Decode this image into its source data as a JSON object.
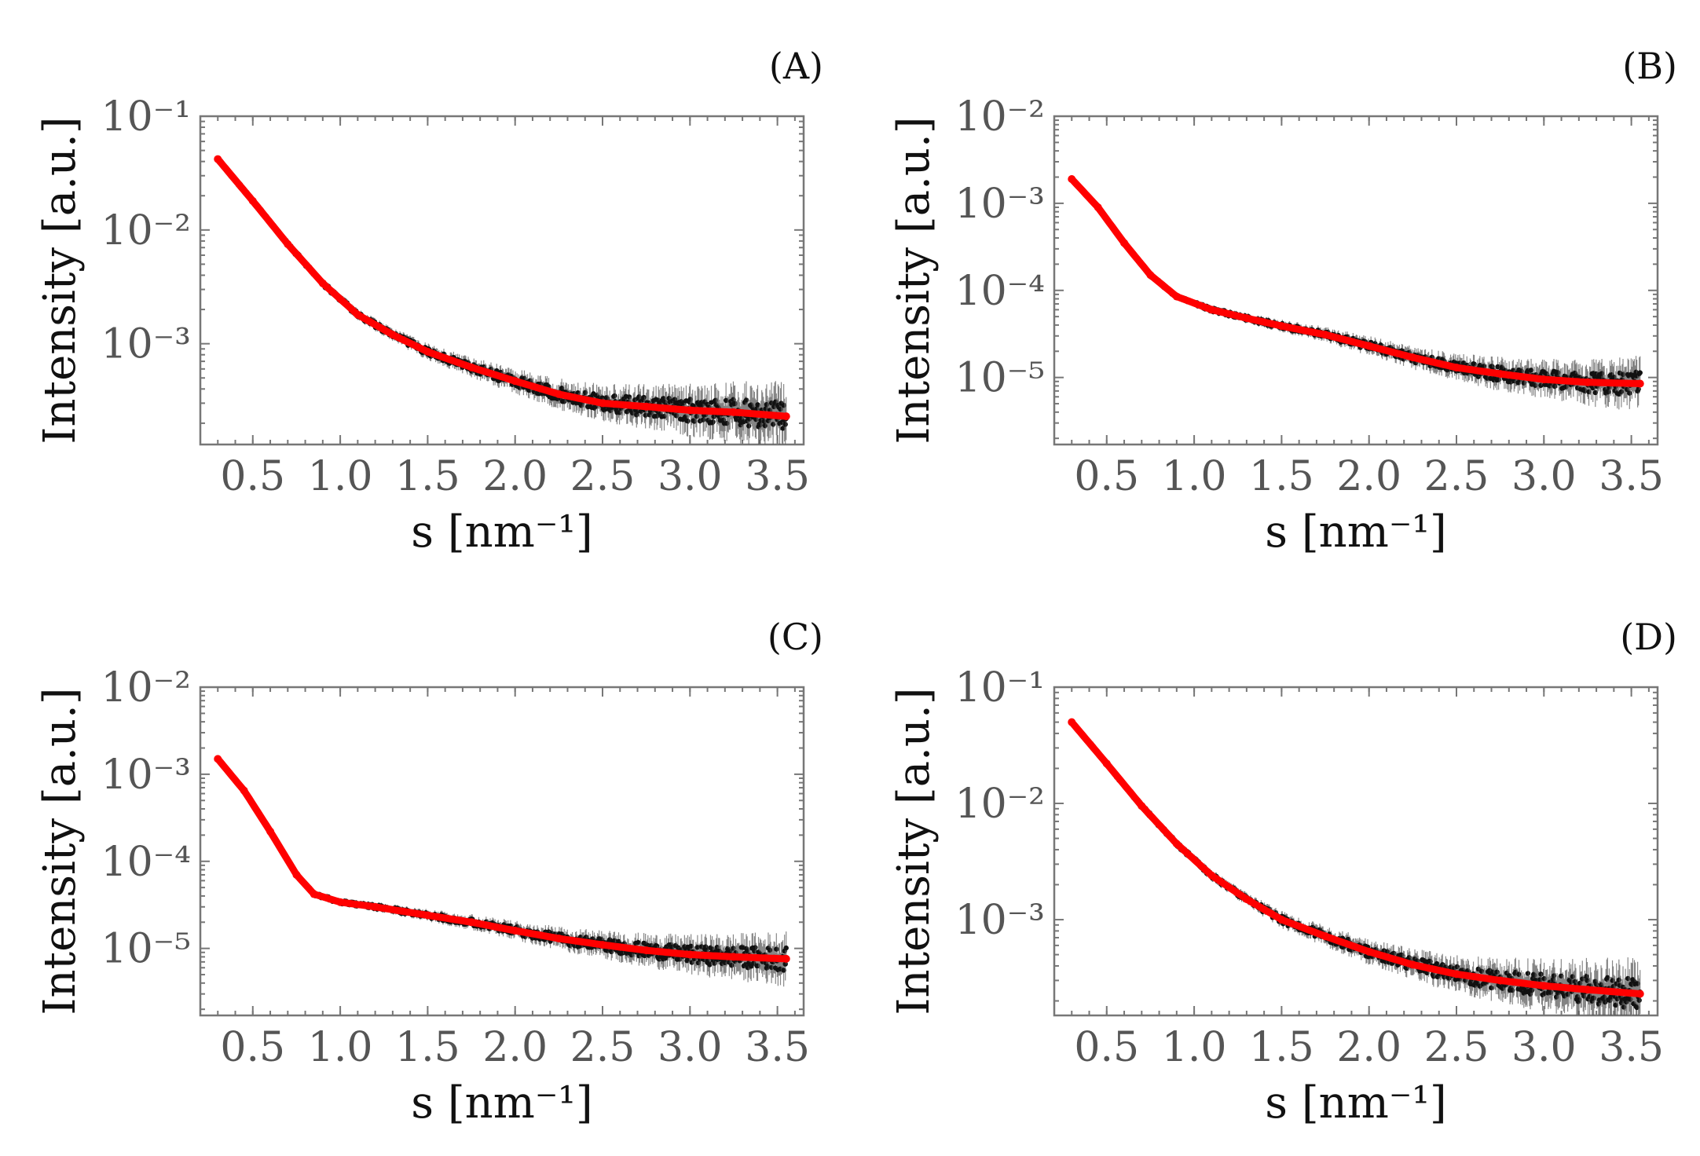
{
  "chart_data": [
    {
      "type": "scatter",
      "panel_label": "(A)",
      "xlabel": "s [nm⁻¹]",
      "ylabel": "Intensity [a.u.]",
      "y_scale": "log",
      "xlim": [
        0.2,
        3.65
      ],
      "ylim": [
        0.00013,
        0.1
      ],
      "x_ticks": [
        "0.5",
        "1.0",
        "1.5",
        "2.0",
        "2.5",
        "3.0",
        "3.5"
      ],
      "y_ticks": [
        {
          "value": 0.1,
          "label": "10⁻¹"
        },
        {
          "value": 0.01,
          "label": "10⁻²"
        },
        {
          "value": 0.001,
          "label": "10⁻³"
        }
      ],
      "series": [
        {
          "role": "data",
          "color": "#111111",
          "x": [
            0.3,
            0.5,
            0.7,
            0.9,
            1.1,
            1.3,
            1.5,
            1.75,
            2.0,
            2.25,
            2.5,
            2.75,
            3.0,
            3.25,
            3.55
          ],
          "y": [
            0.042,
            0.018,
            0.0075,
            0.0034,
            0.0018,
            0.0012,
            0.00085,
            0.00062,
            0.00047,
            0.00036,
            0.0003,
            0.00028,
            0.00026,
            0.00025,
            0.00023
          ]
        },
        {
          "role": "fit",
          "color": "#ff0000",
          "x": [
            0.3,
            0.5,
            0.7,
            0.9,
            1.1,
            1.3,
            1.5,
            1.75,
            2.0,
            2.25,
            2.5,
            2.75,
            3.0,
            3.25,
            3.55
          ],
          "y": [
            0.042,
            0.018,
            0.0075,
            0.0034,
            0.0018,
            0.0012,
            0.00085,
            0.00062,
            0.00047,
            0.00036,
            0.0003,
            0.00028,
            0.00026,
            0.00025,
            0.00023
          ]
        }
      ]
    },
    {
      "type": "scatter",
      "panel_label": "(B)",
      "xlabel": "s [nm⁻¹]",
      "ylabel": "Intensity [a.u.]",
      "y_scale": "log",
      "xlim": [
        0.2,
        3.65
      ],
      "ylim": [
        1.7e-06,
        0.01
      ],
      "x_ticks": [
        "0.5",
        "1.0",
        "1.5",
        "2.0",
        "2.5",
        "3.0",
        "3.5"
      ],
      "y_ticks": [
        {
          "value": 0.01,
          "label": "10⁻²"
        },
        {
          "value": 0.001,
          "label": "10⁻³"
        },
        {
          "value": 0.0001,
          "label": "10⁻⁴"
        },
        {
          "value": 1e-05,
          "label": "10⁻⁵"
        }
      ],
      "series": [
        {
          "role": "data",
          "color": "#111111",
          "x": [
            0.3,
            0.45,
            0.6,
            0.75,
            0.9,
            1.1,
            1.3,
            1.5,
            1.75,
            2.0,
            2.25,
            2.5,
            2.75,
            3.0,
            3.25,
            3.55
          ],
          "y": [
            0.0019,
            0.0009,
            0.00035,
            0.00015,
            8.5e-05,
            6e-05,
            4.8e-05,
            3.9e-05,
            3.1e-05,
            2.3e-05,
            1.7e-05,
            1.3e-05,
            1.1e-05,
            9.5e-06,
            8.8e-06,
            8.5e-06
          ]
        },
        {
          "role": "fit",
          "color": "#ff0000",
          "x": [
            0.3,
            0.45,
            0.6,
            0.75,
            0.9,
            1.1,
            1.3,
            1.5,
            1.75,
            2.0,
            2.25,
            2.5,
            2.75,
            3.0,
            3.25,
            3.55
          ],
          "y": [
            0.0019,
            0.0009,
            0.00035,
            0.00015,
            8.5e-05,
            6e-05,
            4.8e-05,
            3.9e-05,
            3.1e-05,
            2.3e-05,
            1.7e-05,
            1.3e-05,
            1.1e-05,
            9.5e-06,
            8.8e-06,
            8.5e-06
          ]
        }
      ]
    },
    {
      "type": "scatter",
      "panel_label": "(C)",
      "xlabel": "s [nm⁻¹]",
      "ylabel": "Intensity [a.u.]",
      "y_scale": "log",
      "xlim": [
        0.2,
        3.65
      ],
      "ylim": [
        1.7e-06,
        0.01
      ],
      "x_ticks": [
        "0.5",
        "1.0",
        "1.5",
        "2.0",
        "2.5",
        "3.0",
        "3.5"
      ],
      "y_ticks": [
        {
          "value": 0.01,
          "label": "10⁻²"
        },
        {
          "value": 0.001,
          "label": "10⁻³"
        },
        {
          "value": 0.0001,
          "label": "10⁻⁴"
        },
        {
          "value": 1e-05,
          "label": "10⁻⁵"
        }
      ],
      "series": [
        {
          "role": "data",
          "color": "#111111",
          "x": [
            0.3,
            0.45,
            0.6,
            0.75,
            0.85,
            1.0,
            1.2,
            1.5,
            1.75,
            2.0,
            2.25,
            2.5,
            2.75,
            3.0,
            3.25,
            3.55
          ],
          "y": [
            0.0015,
            0.00065,
            0.00022,
            7e-05,
            4.2e-05,
            3.4e-05,
            3e-05,
            2.4e-05,
            2e-05,
            1.6e-05,
            1.3e-05,
            1.1e-05,
            9.5e-06,
            8.5e-06,
            8e-06,
            7.6e-06
          ]
        },
        {
          "role": "fit",
          "color": "#ff0000",
          "x": [
            0.3,
            0.45,
            0.6,
            0.75,
            0.85,
            1.0,
            1.2,
            1.5,
            1.75,
            2.0,
            2.25,
            2.5,
            2.75,
            3.0,
            3.25,
            3.55
          ],
          "y": [
            0.0015,
            0.00065,
            0.00022,
            7e-05,
            4.2e-05,
            3.4e-05,
            3e-05,
            2.4e-05,
            2e-05,
            1.6e-05,
            1.3e-05,
            1.1e-05,
            9.5e-06,
            8.5e-06,
            8e-06,
            7.6e-06
          ]
        }
      ]
    },
    {
      "type": "scatter",
      "panel_label": "(D)",
      "xlabel": "s [nm⁻¹]",
      "ylabel": "Intensity [a.u.]",
      "y_scale": "log",
      "xlim": [
        0.2,
        3.65
      ],
      "ylim": [
        0.00015,
        0.1
      ],
      "x_ticks": [
        "0.5",
        "1.0",
        "1.5",
        "2.0",
        "2.5",
        "3.0",
        "3.5"
      ],
      "y_ticks": [
        {
          "value": 0.1,
          "label": "10⁻¹"
        },
        {
          "value": 0.01,
          "label": "10⁻²"
        },
        {
          "value": 0.001,
          "label": "10⁻³"
        }
      ],
      "series": [
        {
          "role": "data",
          "color": "#111111",
          "x": [
            0.3,
            0.5,
            0.7,
            0.9,
            1.1,
            1.3,
            1.5,
            1.75,
            2.0,
            2.25,
            2.5,
            2.75,
            3.0,
            3.25,
            3.55
          ],
          "y": [
            0.05,
            0.022,
            0.0095,
            0.0045,
            0.0024,
            0.0015,
            0.001,
            0.00072,
            0.00053,
            0.00041,
            0.00034,
            0.0003,
            0.00027,
            0.00025,
            0.00023
          ]
        },
        {
          "role": "fit",
          "color": "#ff0000",
          "x": [
            0.3,
            0.5,
            0.7,
            0.9,
            1.1,
            1.3,
            1.5,
            1.75,
            2.0,
            2.25,
            2.5,
            2.75,
            3.0,
            3.25,
            3.55
          ],
          "y": [
            0.05,
            0.022,
            0.0095,
            0.0045,
            0.0024,
            0.0015,
            0.001,
            0.00072,
            0.00053,
            0.00041,
            0.00034,
            0.0003,
            0.00027,
            0.00025,
            0.00023
          ]
        }
      ]
    }
  ]
}
